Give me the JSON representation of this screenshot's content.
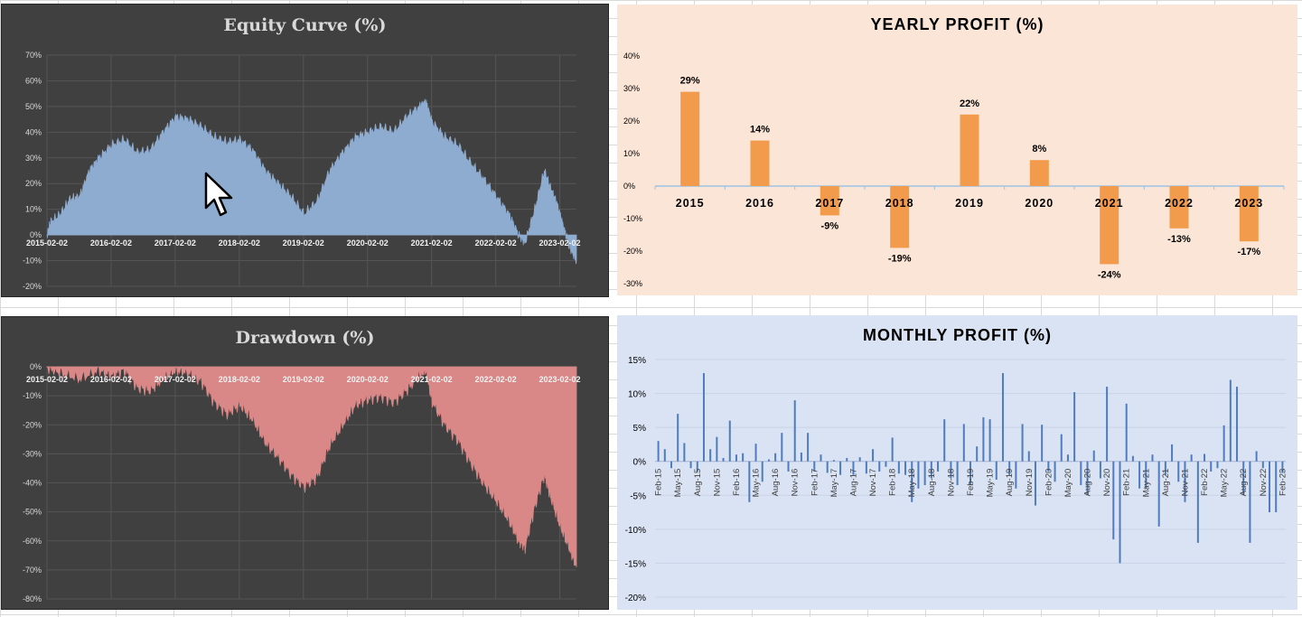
{
  "colors": {
    "equity_fill": "#8eabd0",
    "drawdown_fill": "#d98787",
    "yearly_bar": "#f39b4c",
    "monthly_bar": "#4e7cbf",
    "dark_bg": "#404040"
  },
  "chart_data": [
    {
      "id": "equity",
      "type": "area",
      "title": "Equity Curve (%)",
      "ylim": [
        -20,
        70
      ],
      "yticks": [
        "70%",
        "60%",
        "50%",
        "40%",
        "30%",
        "20%",
        "10%",
        "0%",
        "-10%",
        "-20%"
      ],
      "xticks": [
        "2015-02-02",
        "2016-02-02",
        "2017-02-02",
        "2018-02-02",
        "2019-02-02",
        "2020-02-02",
        "2021-02-02",
        "2022-02-02",
        "2023-02-02"
      ],
      "xrange": [
        2015.09,
        2023.35
      ],
      "series": [
        {
          "name": "Equity",
          "x": [
            2015.09,
            2015.15,
            2015.3,
            2015.45,
            2015.6,
            2015.75,
            2015.9,
            2016.1,
            2016.3,
            2016.5,
            2016.7,
            2016.9,
            2017.1,
            2017.3,
            2017.5,
            2017.7,
            2017.9,
            2018.1,
            2018.3,
            2018.5,
            2018.7,
            2018.9,
            2019.1,
            2019.3,
            2019.5,
            2019.7,
            2019.9,
            2020.1,
            2020.3,
            2020.5,
            2020.7,
            2020.9,
            2021.0,
            2021.1,
            2021.3,
            2021.5,
            2021.7,
            2021.9,
            2022.1,
            2022.3,
            2022.45,
            2022.55,
            2022.7,
            2022.85,
            2022.95,
            2023.05,
            2023.15,
            2023.25,
            2023.35
          ],
          "values": [
            0,
            5,
            8,
            14,
            15,
            25,
            30,
            35,
            37,
            32,
            33,
            40,
            46,
            45,
            42,
            38,
            36,
            37,
            33,
            25,
            20,
            15,
            8,
            13,
            25,
            32,
            38,
            40,
            42,
            40,
            46,
            50,
            52,
            44,
            38,
            35,
            28,
            22,
            15,
            8,
            0,
            -3,
            10,
            25,
            18,
            12,
            3,
            -5,
            -10
          ]
        }
      ]
    },
    {
      "id": "yearly",
      "type": "bar",
      "title": "YEARLY PROFIT (%)",
      "ylim": [
        -30,
        40
      ],
      "yticks": [
        "40%",
        "30%",
        "20%",
        "10%",
        "0%",
        "-10%",
        "-20%",
        "-30%"
      ],
      "categories": [
        "2015",
        "2016",
        "2017",
        "2018",
        "2019",
        "2020",
        "2021",
        "2022",
        "2023"
      ],
      "values": [
        29,
        14,
        -9,
        -19,
        22,
        8,
        -24,
        -13,
        -17
      ],
      "labels": [
        "29%",
        "14%",
        "-9%",
        "-19%",
        "22%",
        "8%",
        "-24%",
        "-13%",
        "-17%"
      ]
    },
    {
      "id": "drawdown",
      "type": "area",
      "title": "Drawdown (%)",
      "ylim": [
        -80,
        0
      ],
      "yticks": [
        "0%",
        "-10%",
        "-20%",
        "-30%",
        "-40%",
        "-50%",
        "-60%",
        "-70%",
        "-80%"
      ],
      "xticks": [
        "2015-02-02",
        "2016-02-02",
        "2017-02-02",
        "2018-02-02",
        "2019-02-02",
        "2020-02-02",
        "2021-02-02",
        "2022-02-02",
        "2023-02-02"
      ],
      "xrange": [
        2015.09,
        2023.35
      ],
      "series": [
        {
          "name": "Drawdown",
          "x": [
            2015.09,
            2015.3,
            2015.6,
            2015.9,
            2016.1,
            2016.3,
            2016.5,
            2016.7,
            2016.9,
            2017.1,
            2017.3,
            2017.5,
            2017.7,
            2017.9,
            2018.1,
            2018.3,
            2018.5,
            2018.7,
            2018.9,
            2019.1,
            2019.3,
            2019.5,
            2019.7,
            2019.9,
            2020.1,
            2020.3,
            2020.5,
            2020.7,
            2020.9,
            2021.0,
            2021.1,
            2021.3,
            2021.5,
            2021.7,
            2021.9,
            2022.1,
            2022.3,
            2022.45,
            2022.55,
            2022.7,
            2022.85,
            2022.95,
            2023.1,
            2023.25,
            2023.35
          ],
          "values": [
            0,
            -2,
            -4,
            -1,
            -3,
            -1,
            -7,
            -8,
            -4,
            -1,
            -2,
            -5,
            -12,
            -16,
            -13,
            -18,
            -26,
            -31,
            -37,
            -41,
            -38,
            -27,
            -20,
            -13,
            -11,
            -10,
            -12,
            -8,
            -3,
            -1,
            -12,
            -20,
            -25,
            -33,
            -40,
            -46,
            -53,
            -60,
            -62,
            -48,
            -37,
            -45,
            -55,
            -63,
            -69
          ]
        }
      ]
    },
    {
      "id": "monthly",
      "type": "bar",
      "title": "MONTHLY PROFIT (%)",
      "ylim": [
        -20,
        15
      ],
      "yticks": [
        "15%",
        "10%",
        "5%",
        "0%",
        "-5%",
        "-10%",
        "-15%",
        "-20%"
      ],
      "xticks": [
        "Feb-15",
        "May-15",
        "Aug-15",
        "Nov-15",
        "Feb-16",
        "May-16",
        "Aug-16",
        "Nov-16",
        "Feb-17",
        "May-17",
        "Aug-17",
        "Nov-17",
        "Feb-18",
        "May-18",
        "Aug-18",
        "Nov-18",
        "Feb-19",
        "May-19",
        "Aug-19",
        "Nov-19",
        "Feb-20",
        "May-20",
        "Aug-20",
        "Nov-20",
        "Feb-21",
        "May-21",
        "Aug-21",
        "Nov-21",
        "Feb-22",
        "May-22",
        "Aug-22",
        "Nov-22",
        "Feb-23"
      ],
      "series": [
        {
          "name": "Monthly profit",
          "values": [
            3,
            1.8,
            -1,
            7,
            2.7,
            -1,
            -1.5,
            13,
            1.8,
            3.6,
            0.5,
            6,
            1,
            1.2,
            -6,
            2.6,
            -3,
            0.3,
            1.2,
            4.2,
            -1.5,
            9,
            1.3,
            4.2,
            -1.5,
            1,
            -1.7,
            0.2,
            -2,
            0.5,
            -2,
            0.6,
            -1.8,
            1.8,
            -1.5,
            -0.8,
            3.5,
            -1.8,
            -2,
            -6,
            -4,
            -3.5,
            -2.5,
            -1.5,
            6.2,
            -2.5,
            -3.5,
            5.5,
            -3.5,
            2.2,
            6.5,
            6.2,
            -2.7,
            13,
            -2,
            -4,
            5.5,
            1.5,
            -6.5,
            5.4,
            -1.5,
            -3,
            4,
            1,
            10.2,
            -3.5,
            -5,
            1.6,
            -2.5,
            11,
            -11.5,
            -15,
            8.5,
            0.8,
            -4,
            -4,
            1,
            -9.6,
            -2,
            2.5,
            -3,
            -6,
            1,
            -12,
            1.1,
            -1.5,
            -1,
            5.3,
            12,
            11,
            -5,
            -12,
            1.5,
            -1,
            -7.5,
            -7.5,
            -1.7
          ]
        }
      ]
    }
  ]
}
